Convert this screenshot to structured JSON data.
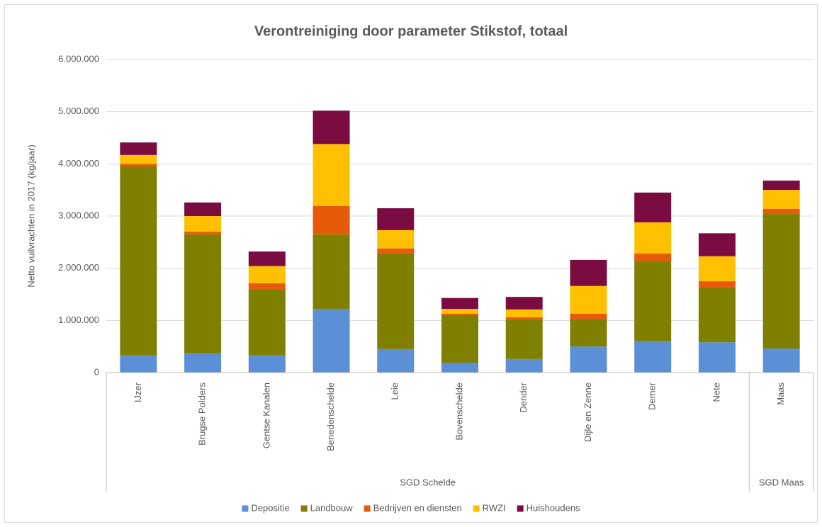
{
  "chart_data": {
    "type": "stacked_bar",
    "title": "Verontreiniging door parameter Stikstof, totaal",
    "y_label": "Netto vuilvrachten in 2017 (kg/jaar)",
    "categories": [
      "IJzer",
      "Brugse Polders",
      "Gentse Kanalen",
      "Benedenschelde",
      "Leie",
      "Bovenschelde",
      "Dender",
      "Dijle en Zenne",
      "Demer",
      "Nete",
      "Maas"
    ],
    "groups": [
      {
        "name": "SGD Schelde",
        "size": 10
      },
      {
        "name": "SGD Maas",
        "size": 1
      }
    ],
    "series": [
      {
        "name": "Depositie",
        "color": "#5b8fd6",
        "values": [
          330000,
          370000,
          330000,
          1220000,
          450000,
          190000,
          260000,
          500000,
          600000,
          580000,
          460000
        ]
      },
      {
        "name": "Landbouw",
        "color": "#7f7f00",
        "values": [
          3620000,
          2280000,
          1270000,
          1430000,
          1840000,
          910000,
          760000,
          530000,
          1540000,
          1050000,
          2580000
        ]
      },
      {
        "name": "Bedrijven en diensten",
        "color": "#e65a0a",
        "values": [
          50000,
          50000,
          110000,
          540000,
          90000,
          30000,
          40000,
          100000,
          140000,
          120000,
          100000
        ]
      },
      {
        "name": "RWZI",
        "color": "#ffc000",
        "values": [
          170000,
          300000,
          330000,
          1190000,
          350000,
          90000,
          150000,
          530000,
          600000,
          480000,
          360000
        ]
      },
      {
        "name": "Huishoudens",
        "color": "#7b0c42",
        "values": [
          240000,
          260000,
          280000,
          640000,
          420000,
          210000,
          240000,
          500000,
          570000,
          440000,
          180000
        ]
      }
    ],
    "ylim": [
      0,
      6000000
    ],
    "yticks": [
      0,
      {
        "value": 1000000,
        "label": "1.000.000"
      },
      {
        "value": 2000000,
        "label": "2.000.000"
      },
      {
        "value": 3000000,
        "label": "3.000.000"
      },
      {
        "value": 4000000,
        "label": "4.000.000"
      },
      {
        "value": 5000000,
        "label": "5.000.000"
      },
      {
        "value": 6000000,
        "label": "6.000.000"
      }
    ],
    "grid": true,
    "legend": "bottom"
  }
}
